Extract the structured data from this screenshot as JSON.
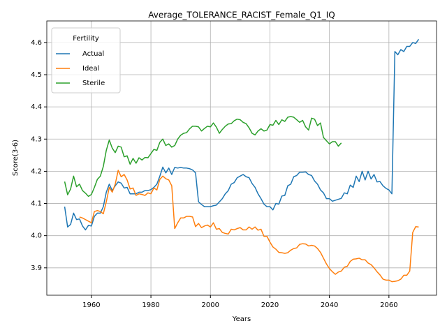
{
  "chart_data": {
    "type": "line",
    "title": "Average_TOLERANCE_RACIST_Female_Q1_IQ",
    "xlabel": "Years",
    "ylabel": "Score(3-6)",
    "legend_title": "Fertility",
    "legend_loc": "upper left",
    "grid": true,
    "xlim": [
      1945,
      2076
    ],
    "ylim": [
      3.815,
      4.667
    ],
    "xticks": [
      1960,
      1980,
      2000,
      2020,
      2040,
      2060
    ],
    "yticks": [
      3.9,
      {
        "value": 4,
        "label": "4.0"
      },
      4.1,
      4.2,
      4.3,
      4.4,
      4.5,
      4.6
    ],
    "x": [
      1951,
      1952,
      1953,
      1954,
      1955,
      1956,
      1957,
      1958,
      1959,
      1960,
      1961,
      1962,
      1963,
      1964,
      1965,
      1966,
      1967,
      1968,
      1969,
      1970,
      1971,
      1972,
      1973,
      1974,
      1975,
      1976,
      1977,
      1978,
      1979,
      1980,
      1981,
      1982,
      1983,
      1984,
      1985,
      1986,
      1987,
      1988,
      1989,
      1990,
      1991,
      1992,
      1993,
      1994,
      1995,
      1996,
      1997,
      1998,
      1999,
      2000,
      2001,
      2002,
      2003,
      2004,
      2005,
      2006,
      2007,
      2008,
      2009,
      2010,
      2011,
      2012,
      2013,
      2014,
      2015,
      2016,
      2017,
      2018,
      2019,
      2020,
      2021,
      2022,
      2023,
      2024,
      2025,
      2026,
      2027,
      2028,
      2029,
      2030,
      2031,
      2032,
      2033,
      2034,
      2035,
      2036,
      2037,
      2038,
      2039,
      2040,
      2041,
      2042,
      2043,
      2044,
      2045,
      2046,
      2047,
      2048,
      2049,
      2050,
      2051,
      2052,
      2053,
      2054,
      2055,
      2056,
      2057,
      2058,
      2059,
      2060,
      2061,
      2062,
      2063,
      2064,
      2065,
      2066,
      2067,
      2068,
      2069,
      2070
    ],
    "series": [
      {
        "name": "Actual",
        "color": "#1f77b4",
        "values": [
          4.09,
          4.027,
          4.035,
          4.07,
          4.05,
          4.052,
          4.03,
          4.018,
          4.032,
          4.03,
          4.06,
          4.07,
          4.07,
          4.09,
          4.135,
          4.16,
          4.14,
          4.155,
          4.167,
          4.163,
          4.148,
          4.15,
          4.13,
          4.13,
          4.13,
          4.135,
          4.135,
          4.14,
          4.14,
          4.143,
          4.15,
          4.16,
          4.185,
          4.213,
          4.195,
          4.21,
          4.19,
          4.212,
          4.21,
          4.212,
          4.21,
          4.21,
          4.208,
          4.204,
          4.195,
          4.105,
          4.097,
          4.09,
          4.09,
          4.09,
          4.093,
          4.095,
          4.105,
          4.115,
          4.13,
          4.14,
          4.16,
          4.165,
          4.18,
          4.185,
          4.19,
          4.183,
          4.18,
          4.162,
          4.15,
          4.13,
          4.115,
          4.098,
          4.09,
          4.09,
          4.08,
          4.1,
          4.098,
          4.123,
          4.125,
          4.155,
          4.16,
          4.183,
          4.187,
          4.197,
          4.197,
          4.198,
          4.19,
          4.187,
          4.17,
          4.16,
          4.142,
          4.133,
          4.115,
          4.115,
          4.107,
          4.11,
          4.113,
          4.116,
          4.133,
          4.13,
          4.157,
          4.15,
          4.185,
          4.168,
          4.2,
          4.173,
          4.2,
          4.176,
          4.19,
          4.167,
          4.168,
          4.155,
          4.147,
          4.142,
          4.13,
          4.572,
          4.562,
          4.578,
          4.572,
          4.588,
          4.588,
          4.6,
          4.597,
          4.61
        ]
      },
      {
        "name": "Ideal",
        "color": "#ff7f0e",
        "values": [
          null,
          null,
          null,
          null,
          null,
          4.058,
          4.055,
          4.05,
          4.045,
          4.04,
          4.075,
          4.078,
          4.075,
          4.068,
          4.105,
          4.15,
          4.135,
          4.16,
          4.203,
          4.183,
          4.19,
          4.173,
          4.145,
          4.148,
          4.125,
          4.13,
          4.128,
          4.125,
          4.133,
          4.13,
          4.148,
          4.142,
          4.175,
          4.185,
          4.177,
          4.173,
          4.155,
          4.022,
          4.04,
          4.055,
          4.055,
          4.06,
          4.06,
          4.058,
          4.028,
          4.038,
          4.025,
          4.03,
          4.033,
          4.027,
          4.04,
          4.02,
          4.022,
          4.01,
          4.007,
          4.005,
          4.02,
          4.018,
          4.022,
          4.025,
          4.018,
          4.018,
          4.027,
          4.02,
          4.027,
          4.017,
          4.02,
          3.998,
          3.998,
          3.98,
          3.965,
          3.958,
          3.948,
          3.947,
          3.945,
          3.947,
          3.955,
          3.96,
          3.962,
          3.973,
          3.975,
          3.974,
          3.968,
          3.97,
          3.968,
          3.96,
          3.948,
          3.93,
          3.912,
          3.898,
          3.888,
          3.88,
          3.887,
          3.89,
          3.902,
          3.905,
          3.92,
          3.927,
          3.928,
          3.93,
          3.925,
          3.925,
          3.915,
          3.91,
          3.9,
          3.888,
          3.878,
          3.865,
          3.862,
          3.862,
          3.857,
          3.858,
          3.86,
          3.865,
          3.877,
          3.877,
          3.89,
          4.01,
          4.028,
          4.027
        ]
      },
      {
        "name": "Sterile",
        "color": "#2ca02c",
        "values": [
          4.168,
          4.127,
          4.145,
          4.185,
          4.152,
          4.16,
          4.14,
          4.132,
          4.122,
          4.128,
          4.15,
          4.175,
          4.185,
          4.215,
          4.265,
          4.297,
          4.272,
          4.258,
          4.278,
          4.275,
          4.245,
          4.248,
          4.222,
          4.24,
          4.225,
          4.242,
          4.235,
          4.243,
          4.242,
          4.255,
          4.268,
          4.265,
          4.29,
          4.3,
          4.28,
          4.285,
          4.275,
          4.28,
          4.3,
          4.312,
          4.318,
          4.32,
          4.332,
          4.34,
          4.34,
          4.338,
          4.325,
          4.333,
          4.34,
          4.338,
          4.35,
          4.337,
          4.318,
          4.33,
          4.34,
          4.347,
          4.348,
          4.357,
          4.362,
          4.36,
          4.352,
          4.348,
          4.335,
          4.318,
          4.313,
          4.325,
          4.332,
          4.325,
          4.328,
          4.345,
          4.343,
          4.358,
          4.345,
          4.36,
          4.355,
          4.368,
          4.37,
          4.368,
          4.36,
          4.352,
          4.358,
          4.338,
          4.328,
          4.365,
          4.362,
          4.342,
          4.35,
          4.305,
          4.295,
          4.285,
          4.292,
          4.292,
          4.278,
          4.288,
          null,
          null,
          null,
          null,
          null,
          null,
          null,
          null,
          null,
          null,
          null,
          null,
          null,
          null,
          null,
          null,
          null,
          null,
          null,
          null,
          null,
          null,
          null,
          null,
          null,
          null
        ]
      }
    ]
  }
}
